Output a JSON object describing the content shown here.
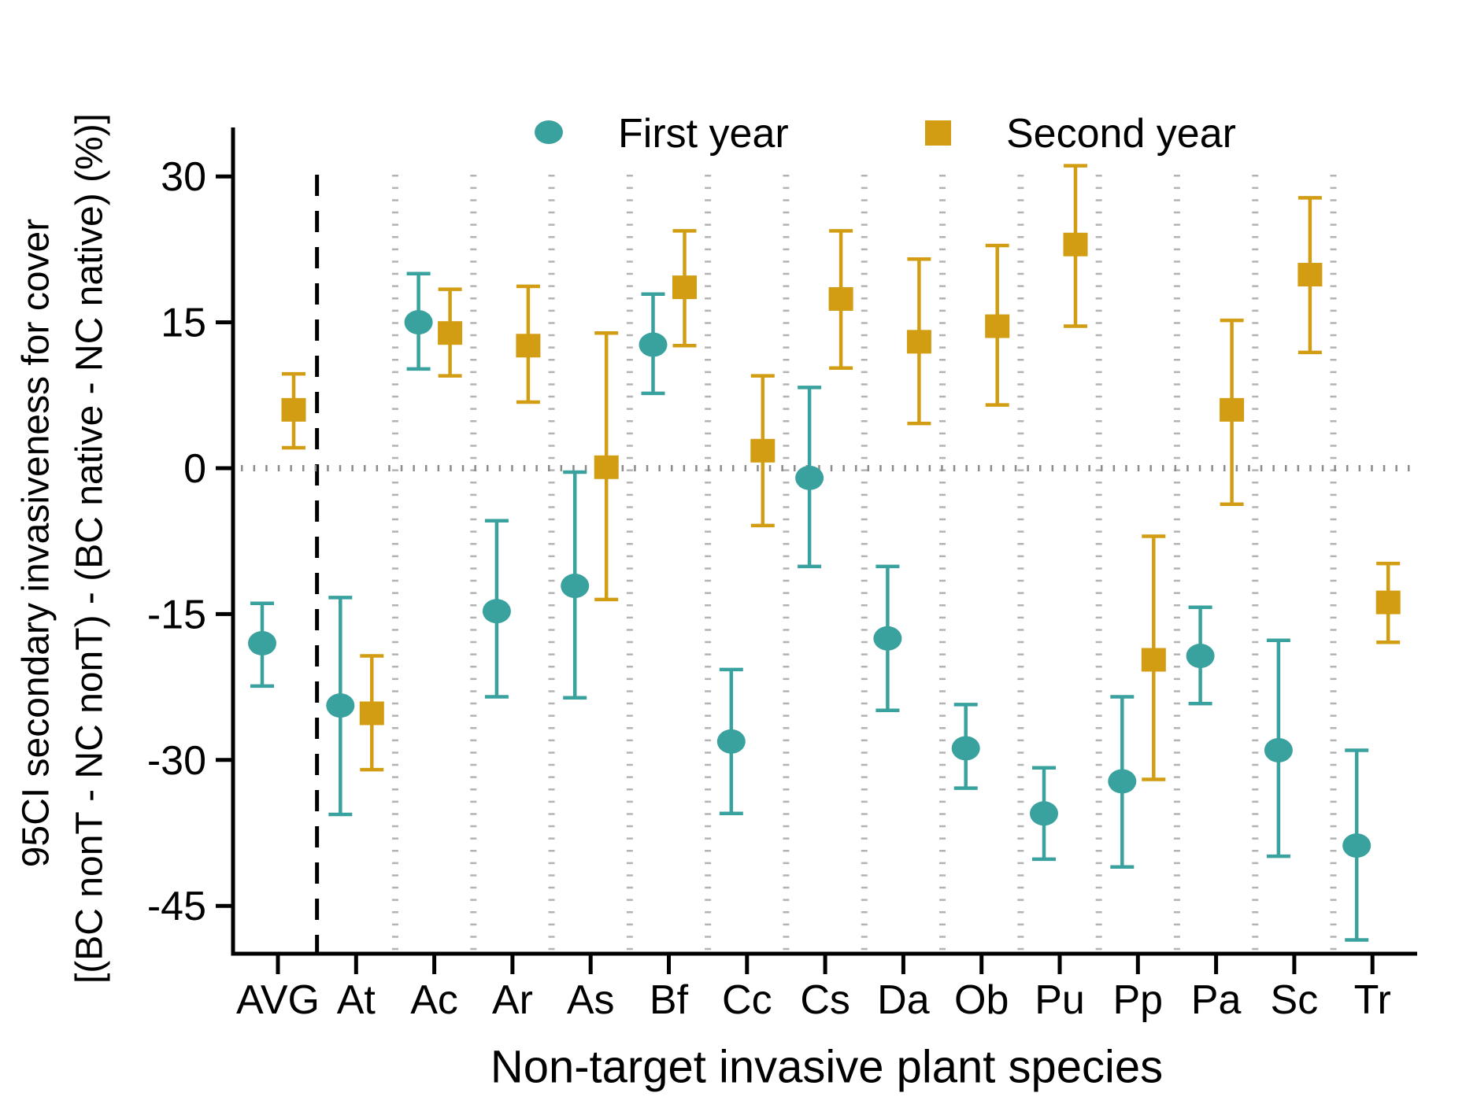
{
  "figure": {
    "y_axis": {
      "title_line1": "95CI secondary invasiveness for cover",
      "title_line2": "[(BC nonT - NC nonT) - (BC native - NC native) (%)]",
      "ticks": [
        30,
        15,
        0,
        -15,
        -30,
        -45
      ]
    },
    "x_axis": {
      "title": "Non-target invasive plant species"
    },
    "colors": {
      "first_year": "#3AA29E",
      "second_year": "#D29D12",
      "grid_dots": "#B3B3B3",
      "zero_line_dots": "#8C8C8C",
      "separator_line": "#000000"
    }
  },
  "chart_data": {
    "type": "scatter",
    "subtype": "point estimates with 95% CI error bars",
    "title": "",
    "xlabel": "Non-target invasive plant species",
    "ylabel": "95CI secondary invasiveness for cover [(BC nonT - NC nonT) - (BC native - NC native) (%)]",
    "categories": [
      "AVG",
      "At",
      "Ac",
      "Ar",
      "As",
      "Bf",
      "Cc",
      "Cs",
      "Da",
      "Ob",
      "Pu",
      "Pp",
      "Pa",
      "Sc",
      "Tr"
    ],
    "yticks": [
      30,
      15,
      0,
      -15,
      -30,
      -45
    ],
    "ylim": [
      -51,
      35
    ],
    "grid": "dotted vertical lines between categories; dotted horizontal line at 0; dashed vertical separator after AVG",
    "legend_position": "top inside, horizontal",
    "series": [
      {
        "name": "First year",
        "marker": "circle",
        "color": "#3AA29E",
        "values": [
          {
            "x": "AVG",
            "est": -18.0,
            "lo": -22.4,
            "hi": -13.9
          },
          {
            "x": "At",
            "est": -24.4,
            "lo": -35.6,
            "hi": -13.3
          },
          {
            "x": "Ac",
            "est": 15.0,
            "lo": 10.2,
            "hi": 20.0
          },
          {
            "x": "Ar",
            "est": -14.7,
            "lo": -23.5,
            "hi": -5.4
          },
          {
            "x": "As",
            "est": -12.1,
            "lo": -23.6,
            "hi": -0.4
          },
          {
            "x": "Bf",
            "est": 12.7,
            "lo": 7.7,
            "hi": 17.9
          },
          {
            "x": "Cc",
            "est": -28.1,
            "lo": -35.5,
            "hi": -20.7
          },
          {
            "x": "Cs",
            "est": -1.0,
            "lo": -10.1,
            "hi": 8.3
          },
          {
            "x": "Da",
            "est": -17.5,
            "lo": -24.9,
            "hi": -10.1
          },
          {
            "x": "Ob",
            "est": -28.8,
            "lo": -32.9,
            "hi": -24.3
          },
          {
            "x": "Pu",
            "est": -35.5,
            "lo": -40.2,
            "hi": -30.8
          },
          {
            "x": "Pp",
            "est": -32.2,
            "lo": -41.0,
            "hi": -23.5
          },
          {
            "x": "Pa",
            "est": -19.3,
            "lo": -24.2,
            "hi": -14.3
          },
          {
            "x": "Sc",
            "est": -29.0,
            "lo": -39.9,
            "hi": -17.7
          },
          {
            "x": "Tr",
            "est": -38.8,
            "lo": -48.5,
            "hi": -29.0
          }
        ]
      },
      {
        "name": "Second year",
        "marker": "square",
        "color": "#D29D12",
        "values": [
          {
            "x": "AVG",
            "est": 6.0,
            "lo": 2.1,
            "hi": 9.7
          },
          {
            "x": "At",
            "est": -25.2,
            "lo": -31.0,
            "hi": -19.3
          },
          {
            "x": "Ac",
            "est": 13.9,
            "lo": 9.5,
            "hi": 18.4
          },
          {
            "x": "Ar",
            "est": 12.6,
            "lo": 6.8,
            "hi": 18.7
          },
          {
            "x": "As",
            "est": 0.1,
            "lo": -13.5,
            "hi": 13.9
          },
          {
            "x": "Bf",
            "est": 18.6,
            "lo": 12.6,
            "hi": 24.4
          },
          {
            "x": "Cc",
            "est": 1.8,
            "lo": -5.9,
            "hi": 9.5
          },
          {
            "x": "Cs",
            "est": 17.4,
            "lo": 10.3,
            "hi": 24.4
          },
          {
            "x": "Da",
            "est": 13.0,
            "lo": 4.6,
            "hi": 21.5
          },
          {
            "x": "Ob",
            "est": 14.6,
            "lo": 6.5,
            "hi": 22.9
          },
          {
            "x": "Pu",
            "est": 23.0,
            "lo": 14.6,
            "hi": 31.1
          },
          {
            "x": "Pp",
            "est": -19.7,
            "lo": -32.0,
            "hi": -7.0
          },
          {
            "x": "Pa",
            "est": 6.0,
            "lo": -3.7,
            "hi": 15.2
          },
          {
            "x": "Sc",
            "est": 19.9,
            "lo": 11.9,
            "hi": 27.8
          },
          {
            "x": "Tr",
            "est": -13.8,
            "lo": -17.9,
            "hi": -9.8
          }
        ]
      }
    ]
  }
}
